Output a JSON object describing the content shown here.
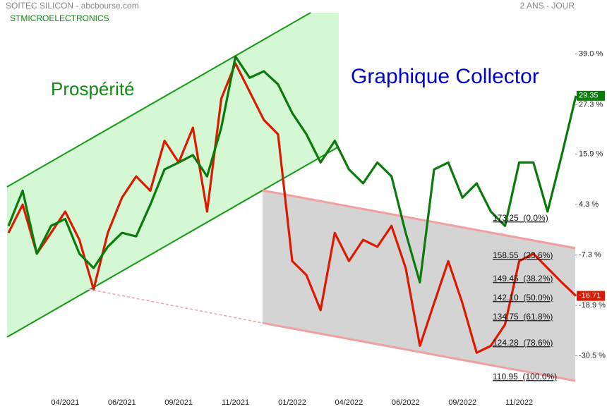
{
  "chart_data": {
    "type": "line",
    "title": "SOITEC SILICON - abcbourse.com",
    "period": "2 ANS - JOUR",
    "annotations": [
      "Prospérité",
      "Graphique Collector"
    ],
    "fibonacci": [
      "173.25  (0.0%)",
      "158.55  (23.6%)",
      "149.45  (38.2%)",
      "142.10  (50.0%)",
      "134.75  (61.8%)",
      "124.28  (78.6%)",
      "110.95  (100.0%)"
    ],
    "categories": [
      null,
      null,
      null,
      null,
      "04/2021",
      null,
      null,
      null,
      "06/2021",
      null,
      null,
      null,
      "09/2021",
      null,
      null,
      null,
      "11/2021",
      null,
      null,
      null,
      "01/2022",
      null,
      null,
      null,
      "04/2022",
      null,
      null,
      null,
      "06/2022",
      null,
      null,
      null,
      "09/2022",
      null,
      null,
      null,
      "11/2022",
      null,
      null,
      null,
      null
    ],
    "series": [
      {
        "color": "#dd1a00",
        "values": [
          -2.2,
          4.3,
          -7,
          -2.2,
          2.7,
          -3.8,
          -15.2,
          -2.2,
          5.9,
          10.8,
          7.5,
          19,
          14,
          22,
          2.7,
          28.7,
          36.8,
          30.3,
          23.8,
          20.5,
          -8.7,
          -11.9,
          -20,
          -2.2,
          -8.7,
          -3.8,
          -5.4,
          -0.6,
          -10.3,
          -28.2,
          -18.4,
          -8.7,
          -18.4,
          -29.8,
          -28.2,
          -23.3,
          -8.7,
          -7,
          -10.3,
          -13.6,
          -16.71
        ]
      },
      {
        "name": "STMICROELECTRONICS",
        "color": "#0a7a0a",
        "values": [
          -0.6,
          7.5,
          -7,
          -0.6,
          1,
          -7,
          -10.3,
          -5.4,
          -2.2,
          -3,
          4.3,
          12.4,
          14,
          15.7,
          10.8,
          22,
          38.4,
          33.5,
          35,
          32,
          25.4,
          20.5,
          14,
          19,
          12.4,
          9.2,
          14,
          10.8,
          -2.2,
          -13.6,
          12.4,
          14,
          5.9,
          9.2,
          2.7,
          -0.6,
          14,
          14,
          2.7,
          15.7,
          29.35
        ]
      }
    ],
    "ylim": [
      -39.5,
      51.4
    ],
    "yticks": [
      {
        "value": 39.0,
        "label": "39.0 %"
      },
      {
        "value": 27.3,
        "label": "27.3 %"
      },
      {
        "value": 15.9,
        "label": "15.9 %"
      },
      {
        "value": 4.3,
        "label": "4.3 %"
      },
      {
        "value": -7.3,
        "label": "-7.3 %"
      },
      {
        "value": -18.9,
        "label": "-18.9 %"
      },
      {
        "value": -30.5,
        "label": "-30.5 %"
      }
    ],
    "grid": false
  }
}
